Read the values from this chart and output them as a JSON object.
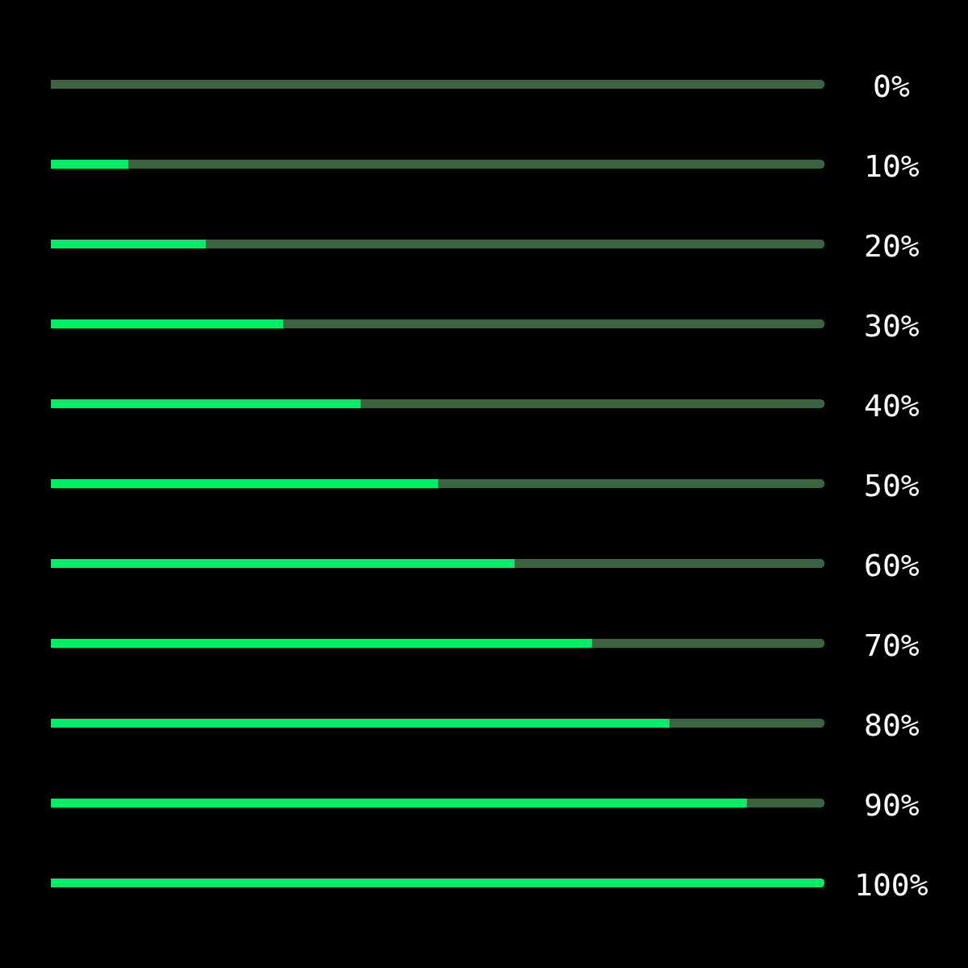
{
  "chart_data": {
    "type": "bar",
    "orientation": "horizontal",
    "stacked": true,
    "categories": [
      null,
      null,
      null,
      null,
      null,
      null,
      null,
      null,
      null,
      null,
      null
    ],
    "series": [
      {
        "color": "#00ee66",
        "values": [
          0,
          10,
          20,
          30,
          40,
          50,
          60,
          70,
          80,
          90,
          100
        ],
        "value_labels": [
          "0%",
          "10%",
          "20%",
          "30%",
          "40%",
          "50%",
          "60%",
          "70%",
          "80%",
          "90%",
          "100%"
        ]
      },
      {
        "color": "#3a6540",
        "values": [
          100,
          90,
          80,
          70,
          60,
          50,
          40,
          30,
          20,
          10,
          0
        ]
      }
    ],
    "xlim": [
      0,
      100
    ]
  }
}
